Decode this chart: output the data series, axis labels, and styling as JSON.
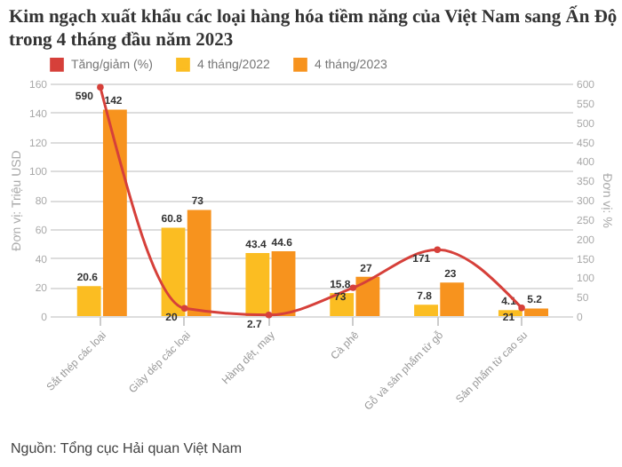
{
  "chart_data": {
    "type": "bar",
    "title": "Kim ngạch xuất khẩu các loại hàng hóa tiềm năng của Việt Nam sang Ấn Độ trong 4 tháng đầu năm 2023",
    "ylabel": "Đơn vị: Triệu USD",
    "y2label": "Đơn vị: %",
    "categories": [
      "Sắt thép các loại",
      "Giày dép các loại",
      "Hàng dệt, may",
      "Cà phê",
      "Gỗ và sản phẩm từ gỗ",
      "Sản phẩm từ cao su"
    ],
    "series": [
      {
        "name": "Tăng/giảm (%)",
        "color": "#d6403a",
        "type": "line",
        "axis": "y2",
        "values": [
          590,
          20,
          2.7,
          73,
          171,
          21
        ]
      },
      {
        "name": "4 tháng/2022",
        "color": "#fbbd22",
        "values": [
          20.6,
          60.8,
          43.4,
          15.8,
          7.8,
          4.1
        ]
      },
      {
        "name": "4 tháng/2023",
        "color": "#f7931e",
        "values": [
          142,
          73,
          44.6,
          27,
          23,
          5.2
        ]
      }
    ],
    "ylim": [
      0,
      160
    ],
    "yticks": [
      0,
      20,
      40,
      60,
      80,
      100,
      120,
      140,
      160
    ],
    "y2lim": [
      0,
      600
    ],
    "y2ticks": [
      0,
      50,
      100,
      150,
      200,
      250,
      300,
      350,
      400,
      450,
      500,
      550,
      600
    ],
    "grid": "y",
    "legend": "top left",
    "data_labels": true,
    "marker": "circle",
    "annotations": [
      "Nguồn: Tổng cục Hải quan Việt Nam"
    ]
  }
}
